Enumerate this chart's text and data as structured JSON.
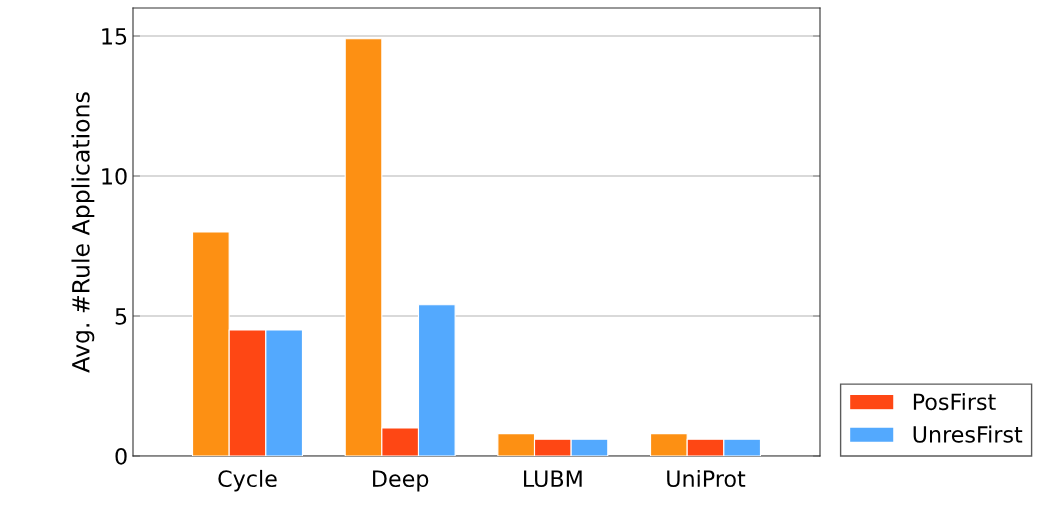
{
  "chart_data": {
    "type": "bar",
    "ylabel": "Avg. #Rule Applications",
    "categories": [
      "Cycle",
      "Deep",
      "LUBM",
      "UniProt"
    ],
    "series": [
      {
        "color": "#fd9013",
        "values": [
          8.0,
          14.9,
          0.8,
          0.8
        ]
      },
      {
        "name": "PosFirst",
        "color": "#fe4714",
        "values": [
          4.5,
          1.0,
          0.6,
          0.6
        ]
      },
      {
        "name": "UnresFirst",
        "color": "#53a9fe",
        "values": [
          4.5,
          5.4,
          0.6,
          0.6
        ]
      }
    ],
    "ylim": [
      0,
      16
    ],
    "yticks": [
      0,
      5,
      10,
      15
    ],
    "grid": "y",
    "legend": "right"
  }
}
